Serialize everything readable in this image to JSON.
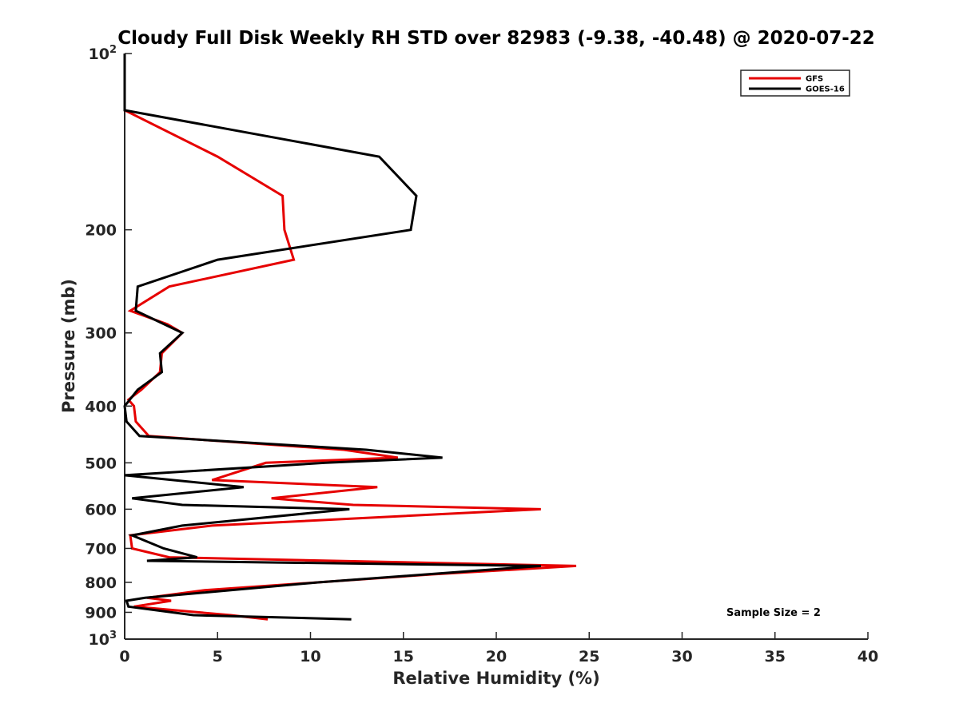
{
  "chart_data": {
    "type": "line",
    "title": "Cloudy Full Disk Weekly RH STD over 82983 (-9.38, -40.48) @ 2020-07-22",
    "xlabel": "Relative Humidity (%)",
    "ylabel": "Pressure (mb)",
    "xlim": [
      0,
      40
    ],
    "ylim": [
      100,
      1000
    ],
    "yscale": "log",
    "y_reversed": true,
    "grid": false,
    "legend_position": "top-right",
    "xticks": [
      "0",
      "5",
      "10",
      "15",
      "20",
      "25",
      "30",
      "35",
      "40"
    ],
    "xtick_values": [
      0,
      5,
      10,
      15,
      20,
      25,
      30,
      35,
      40
    ],
    "yticks": [
      {
        "value": 100,
        "base": "10",
        "exp": "2"
      },
      {
        "value": 200,
        "label": "200"
      },
      {
        "value": 300,
        "label": "300"
      },
      {
        "value": 400,
        "label": "400"
      },
      {
        "value": 500,
        "label": "500"
      },
      {
        "value": 600,
        "label": "600"
      },
      {
        "value": 700,
        "label": "700"
      },
      {
        "value": 800,
        "label": "800"
      },
      {
        "value": 900,
        "label": "900"
      },
      {
        "value": 1000,
        "base": "10",
        "exp": "3"
      }
    ],
    "annotation": "Sample Size = 2",
    "series": [
      {
        "name": "GFS",
        "color": "#e60000",
        "points": [
          [
            0,
            100
          ],
          [
            0,
            125
          ],
          [
            5,
            150
          ],
          [
            8.5,
            175
          ],
          [
            8.6,
            200
          ],
          [
            9.1,
            225
          ],
          [
            2.4,
            250
          ],
          [
            0.3,
            275
          ],
          [
            2.3,
            290
          ],
          [
            3.1,
            300
          ],
          [
            2.0,
            325
          ],
          [
            1.9,
            350
          ],
          [
            0.9,
            375
          ],
          [
            0.2,
            390
          ],
          [
            0.5,
            400
          ],
          [
            0.6,
            425
          ],
          [
            1.3,
            450
          ],
          [
            11.8,
            475
          ],
          [
            14.7,
            490
          ],
          [
            7.6,
            500
          ],
          [
            4.7,
            535
          ],
          [
            13.6,
            550
          ],
          [
            7.9,
            575
          ],
          [
            12.3,
            590
          ],
          [
            22.4,
            600
          ],
          [
            4.7,
            640
          ],
          [
            0.3,
            665
          ],
          [
            0.4,
            700
          ],
          [
            2.4,
            725
          ],
          [
            24.3,
            750
          ],
          [
            16.6,
            775
          ],
          [
            4.3,
            825
          ],
          [
            1.2,
            850
          ],
          [
            2.5,
            860
          ],
          [
            0.5,
            880
          ],
          [
            5.7,
            910
          ],
          [
            7.7,
            925
          ]
        ]
      },
      {
        "name": "GOES-16",
        "color": "#000000",
        "points": [
          [
            0,
            100
          ],
          [
            0,
            125
          ],
          [
            13.7,
            150
          ],
          [
            15.7,
            175
          ],
          [
            15.4,
            200
          ],
          [
            5,
            225
          ],
          [
            0.7,
            250
          ],
          [
            0.6,
            275
          ],
          [
            3.1,
            300
          ],
          [
            1.9,
            325
          ],
          [
            2,
            350
          ],
          [
            0.7,
            375
          ],
          [
            0,
            400
          ],
          [
            0.1,
            425
          ],
          [
            0.8,
            450
          ],
          [
            13,
            475
          ],
          [
            17.1,
            490
          ],
          [
            10.8,
            500
          ],
          [
            0,
            525
          ],
          [
            6.4,
            550
          ],
          [
            0.4,
            575
          ],
          [
            3.1,
            590
          ],
          [
            12.1,
            600
          ],
          [
            3.1,
            640
          ],
          [
            0.4,
            665
          ],
          [
            2.1,
            700
          ],
          [
            3.9,
            725
          ],
          [
            1.2,
            735
          ],
          [
            22.4,
            750
          ],
          [
            10.4,
            800
          ],
          [
            1.1,
            850
          ],
          [
            0.1,
            860
          ],
          [
            0.2,
            880
          ],
          [
            3.7,
            910
          ],
          [
            12.2,
            925
          ]
        ]
      }
    ]
  }
}
